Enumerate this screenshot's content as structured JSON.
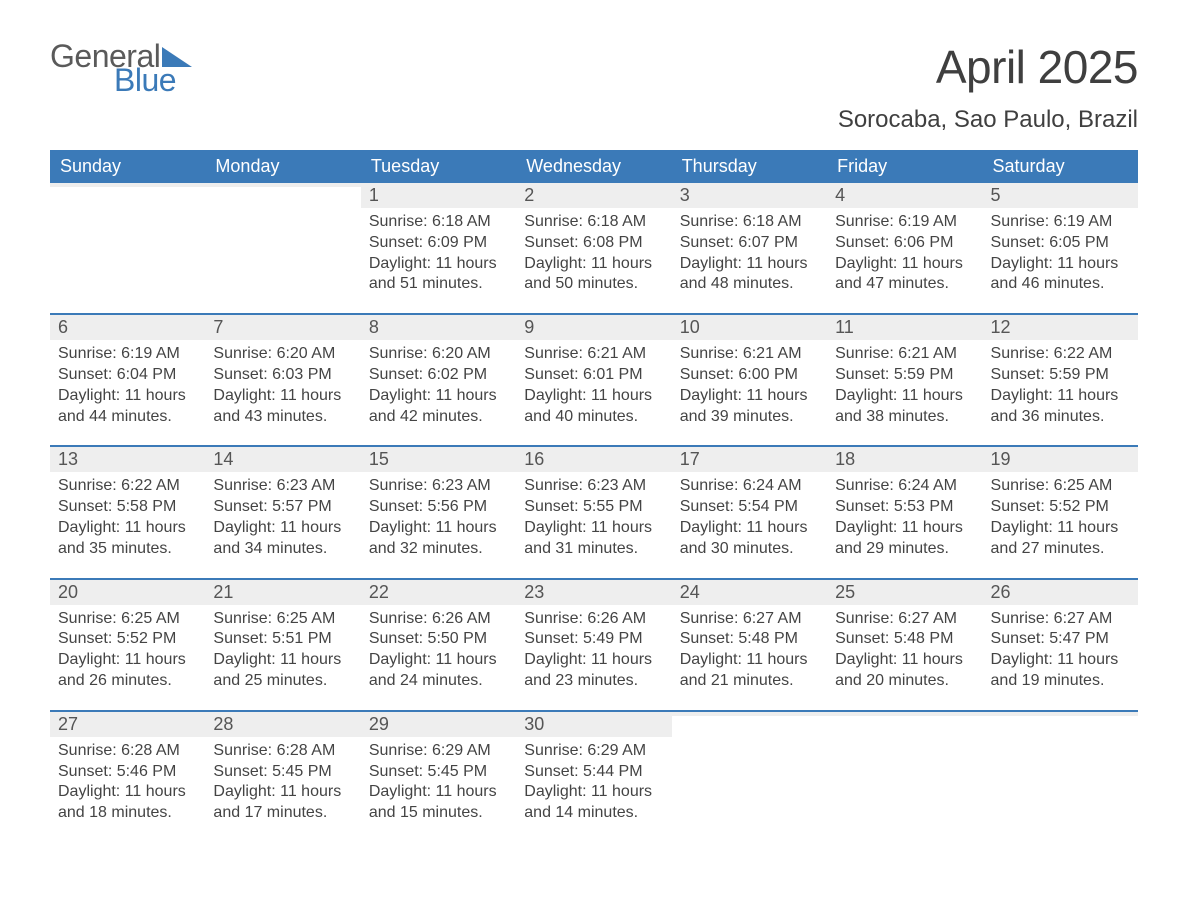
{
  "logo": {
    "general": "General",
    "blue": "Blue"
  },
  "title": "April 2025",
  "location": "Sorocaba, Sao Paulo, Brazil",
  "colors": {
    "header_bg": "#3b7ab8",
    "header_text": "#ffffff",
    "daynum_bg": "#eeeeee",
    "text": "#444444",
    "border": "#3b7ab8"
  },
  "weekdays": [
    "Sunday",
    "Monday",
    "Tuesday",
    "Wednesday",
    "Thursday",
    "Friday",
    "Saturday"
  ],
  "weeks": [
    [
      null,
      null,
      {
        "n": "1",
        "sr": "Sunrise: 6:18 AM",
        "ss": "Sunset: 6:09 PM",
        "d1": "Daylight: 11 hours",
        "d2": "and 51 minutes."
      },
      {
        "n": "2",
        "sr": "Sunrise: 6:18 AM",
        "ss": "Sunset: 6:08 PM",
        "d1": "Daylight: 11 hours",
        "d2": "and 50 minutes."
      },
      {
        "n": "3",
        "sr": "Sunrise: 6:18 AM",
        "ss": "Sunset: 6:07 PM",
        "d1": "Daylight: 11 hours",
        "d2": "and 48 minutes."
      },
      {
        "n": "4",
        "sr": "Sunrise: 6:19 AM",
        "ss": "Sunset: 6:06 PM",
        "d1": "Daylight: 11 hours",
        "d2": "and 47 minutes."
      },
      {
        "n": "5",
        "sr": "Sunrise: 6:19 AM",
        "ss": "Sunset: 6:05 PM",
        "d1": "Daylight: 11 hours",
        "d2": "and 46 minutes."
      }
    ],
    [
      {
        "n": "6",
        "sr": "Sunrise: 6:19 AM",
        "ss": "Sunset: 6:04 PM",
        "d1": "Daylight: 11 hours",
        "d2": "and 44 minutes."
      },
      {
        "n": "7",
        "sr": "Sunrise: 6:20 AM",
        "ss": "Sunset: 6:03 PM",
        "d1": "Daylight: 11 hours",
        "d2": "and 43 minutes."
      },
      {
        "n": "8",
        "sr": "Sunrise: 6:20 AM",
        "ss": "Sunset: 6:02 PM",
        "d1": "Daylight: 11 hours",
        "d2": "and 42 minutes."
      },
      {
        "n": "9",
        "sr": "Sunrise: 6:21 AM",
        "ss": "Sunset: 6:01 PM",
        "d1": "Daylight: 11 hours",
        "d2": "and 40 minutes."
      },
      {
        "n": "10",
        "sr": "Sunrise: 6:21 AM",
        "ss": "Sunset: 6:00 PM",
        "d1": "Daylight: 11 hours",
        "d2": "and 39 minutes."
      },
      {
        "n": "11",
        "sr": "Sunrise: 6:21 AM",
        "ss": "Sunset: 5:59 PM",
        "d1": "Daylight: 11 hours",
        "d2": "and 38 minutes."
      },
      {
        "n": "12",
        "sr": "Sunrise: 6:22 AM",
        "ss": "Sunset: 5:59 PM",
        "d1": "Daylight: 11 hours",
        "d2": "and 36 minutes."
      }
    ],
    [
      {
        "n": "13",
        "sr": "Sunrise: 6:22 AM",
        "ss": "Sunset: 5:58 PM",
        "d1": "Daylight: 11 hours",
        "d2": "and 35 minutes."
      },
      {
        "n": "14",
        "sr": "Sunrise: 6:23 AM",
        "ss": "Sunset: 5:57 PM",
        "d1": "Daylight: 11 hours",
        "d2": "and 34 minutes."
      },
      {
        "n": "15",
        "sr": "Sunrise: 6:23 AM",
        "ss": "Sunset: 5:56 PM",
        "d1": "Daylight: 11 hours",
        "d2": "and 32 minutes."
      },
      {
        "n": "16",
        "sr": "Sunrise: 6:23 AM",
        "ss": "Sunset: 5:55 PM",
        "d1": "Daylight: 11 hours",
        "d2": "and 31 minutes."
      },
      {
        "n": "17",
        "sr": "Sunrise: 6:24 AM",
        "ss": "Sunset: 5:54 PM",
        "d1": "Daylight: 11 hours",
        "d2": "and 30 minutes."
      },
      {
        "n": "18",
        "sr": "Sunrise: 6:24 AM",
        "ss": "Sunset: 5:53 PM",
        "d1": "Daylight: 11 hours",
        "d2": "and 29 minutes."
      },
      {
        "n": "19",
        "sr": "Sunrise: 6:25 AM",
        "ss": "Sunset: 5:52 PM",
        "d1": "Daylight: 11 hours",
        "d2": "and 27 minutes."
      }
    ],
    [
      {
        "n": "20",
        "sr": "Sunrise: 6:25 AM",
        "ss": "Sunset: 5:52 PM",
        "d1": "Daylight: 11 hours",
        "d2": "and 26 minutes."
      },
      {
        "n": "21",
        "sr": "Sunrise: 6:25 AM",
        "ss": "Sunset: 5:51 PM",
        "d1": "Daylight: 11 hours",
        "d2": "and 25 minutes."
      },
      {
        "n": "22",
        "sr": "Sunrise: 6:26 AM",
        "ss": "Sunset: 5:50 PM",
        "d1": "Daylight: 11 hours",
        "d2": "and 24 minutes."
      },
      {
        "n": "23",
        "sr": "Sunrise: 6:26 AM",
        "ss": "Sunset: 5:49 PM",
        "d1": "Daylight: 11 hours",
        "d2": "and 23 minutes."
      },
      {
        "n": "24",
        "sr": "Sunrise: 6:27 AM",
        "ss": "Sunset: 5:48 PM",
        "d1": "Daylight: 11 hours",
        "d2": "and 21 minutes."
      },
      {
        "n": "25",
        "sr": "Sunrise: 6:27 AM",
        "ss": "Sunset: 5:48 PM",
        "d1": "Daylight: 11 hours",
        "d2": "and 20 minutes."
      },
      {
        "n": "26",
        "sr": "Sunrise: 6:27 AM",
        "ss": "Sunset: 5:47 PM",
        "d1": "Daylight: 11 hours",
        "d2": "and 19 minutes."
      }
    ],
    [
      {
        "n": "27",
        "sr": "Sunrise: 6:28 AM",
        "ss": "Sunset: 5:46 PM",
        "d1": "Daylight: 11 hours",
        "d2": "and 18 minutes."
      },
      {
        "n": "28",
        "sr": "Sunrise: 6:28 AM",
        "ss": "Sunset: 5:45 PM",
        "d1": "Daylight: 11 hours",
        "d2": "and 17 minutes."
      },
      {
        "n": "29",
        "sr": "Sunrise: 6:29 AM",
        "ss": "Sunset: 5:45 PM",
        "d1": "Daylight: 11 hours",
        "d2": "and 15 minutes."
      },
      {
        "n": "30",
        "sr": "Sunrise: 6:29 AM",
        "ss": "Sunset: 5:44 PM",
        "d1": "Daylight: 11 hours",
        "d2": "and 14 minutes."
      },
      null,
      null,
      null
    ]
  ]
}
